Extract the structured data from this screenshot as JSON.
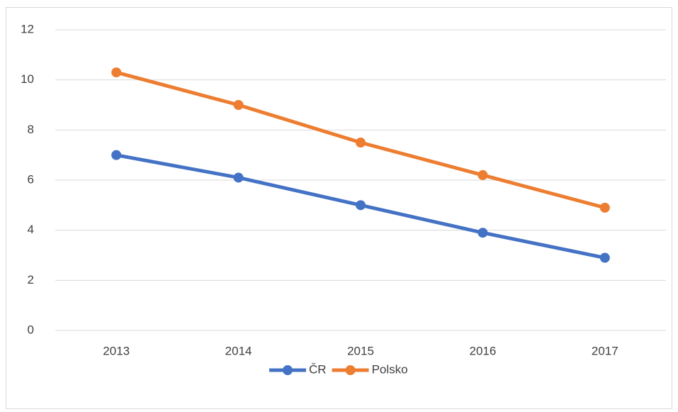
{
  "chart_data": {
    "type": "line",
    "categories": [
      "2013",
      "2014",
      "2015",
      "2016",
      "2017"
    ],
    "series": [
      {
        "name": "ČR",
        "color": "#4472c4",
        "values": [
          7.0,
          6.1,
          5.0,
          3.9,
          2.9
        ]
      },
      {
        "name": "Polsko",
        "color": "#ed7d31",
        "values": [
          10.3,
          9.0,
          7.5,
          6.2,
          4.9
        ]
      }
    ],
    "ylim": [
      0,
      12
    ],
    "yticks": [
      0,
      2,
      4,
      6,
      8,
      10,
      12
    ],
    "grid": true,
    "legend": "bottom"
  }
}
